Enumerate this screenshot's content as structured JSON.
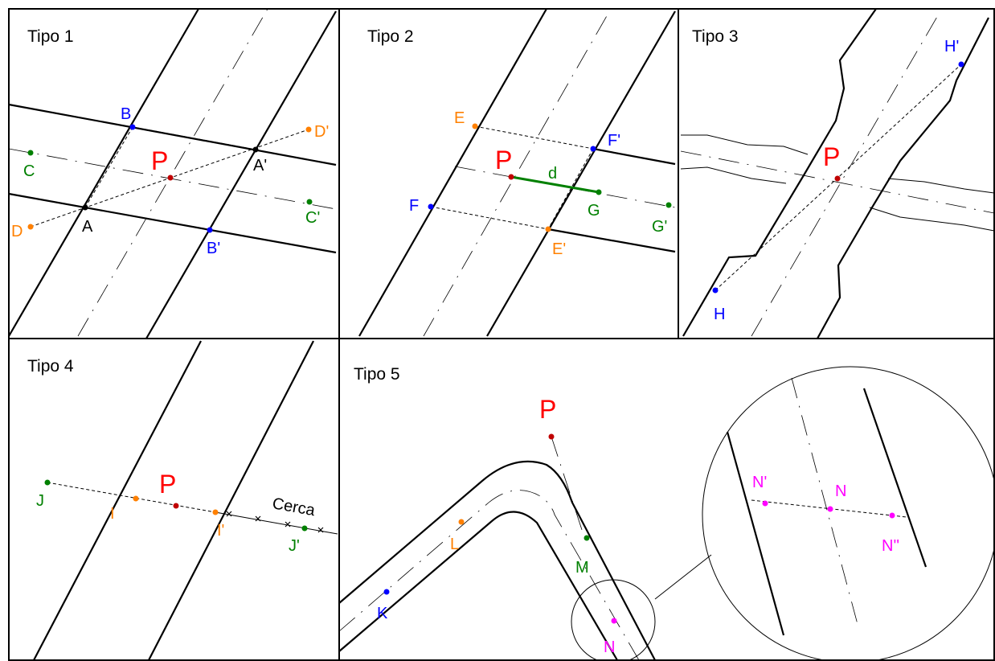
{
  "colors": {
    "red": "#ff0000",
    "blue": "#0000ff",
    "orange": "#ff8000",
    "green": "#008000",
    "magenta": "#ff00ff",
    "black": "#000000"
  },
  "panels": {
    "tipo1": {
      "title": "Tipo  1",
      "labels": {
        "P": "P",
        "A": "A",
        "A2": "A'",
        "B": "B",
        "B2": "B'",
        "C": "C",
        "C2": "C'",
        "D": "D",
        "D2": "D'"
      }
    },
    "tipo2": {
      "title": "Tipo  2",
      "labels": {
        "P": "P",
        "E": "E",
        "E2": "E'",
        "F": "F",
        "F2": "F'",
        "G": "G",
        "G2": "G'",
        "d": "d"
      }
    },
    "tipo3": {
      "title": "Tipo  3",
      "labels": {
        "P": "P",
        "H": "H",
        "H2": "H'"
      }
    },
    "tipo4": {
      "title": "Tipo  4",
      "labels": {
        "P": "P",
        "I": "I",
        "I2": "I'",
        "J": "J",
        "J2": "J'",
        "cerca": "Cerca"
      }
    },
    "tipo5": {
      "title": "Tipo  5",
      "labels": {
        "P": "P",
        "K": "K",
        "L": "L",
        "M": "M",
        "N": "N",
        "N_zoom": "N",
        "N1": "N'",
        "N2": "N''"
      }
    }
  }
}
